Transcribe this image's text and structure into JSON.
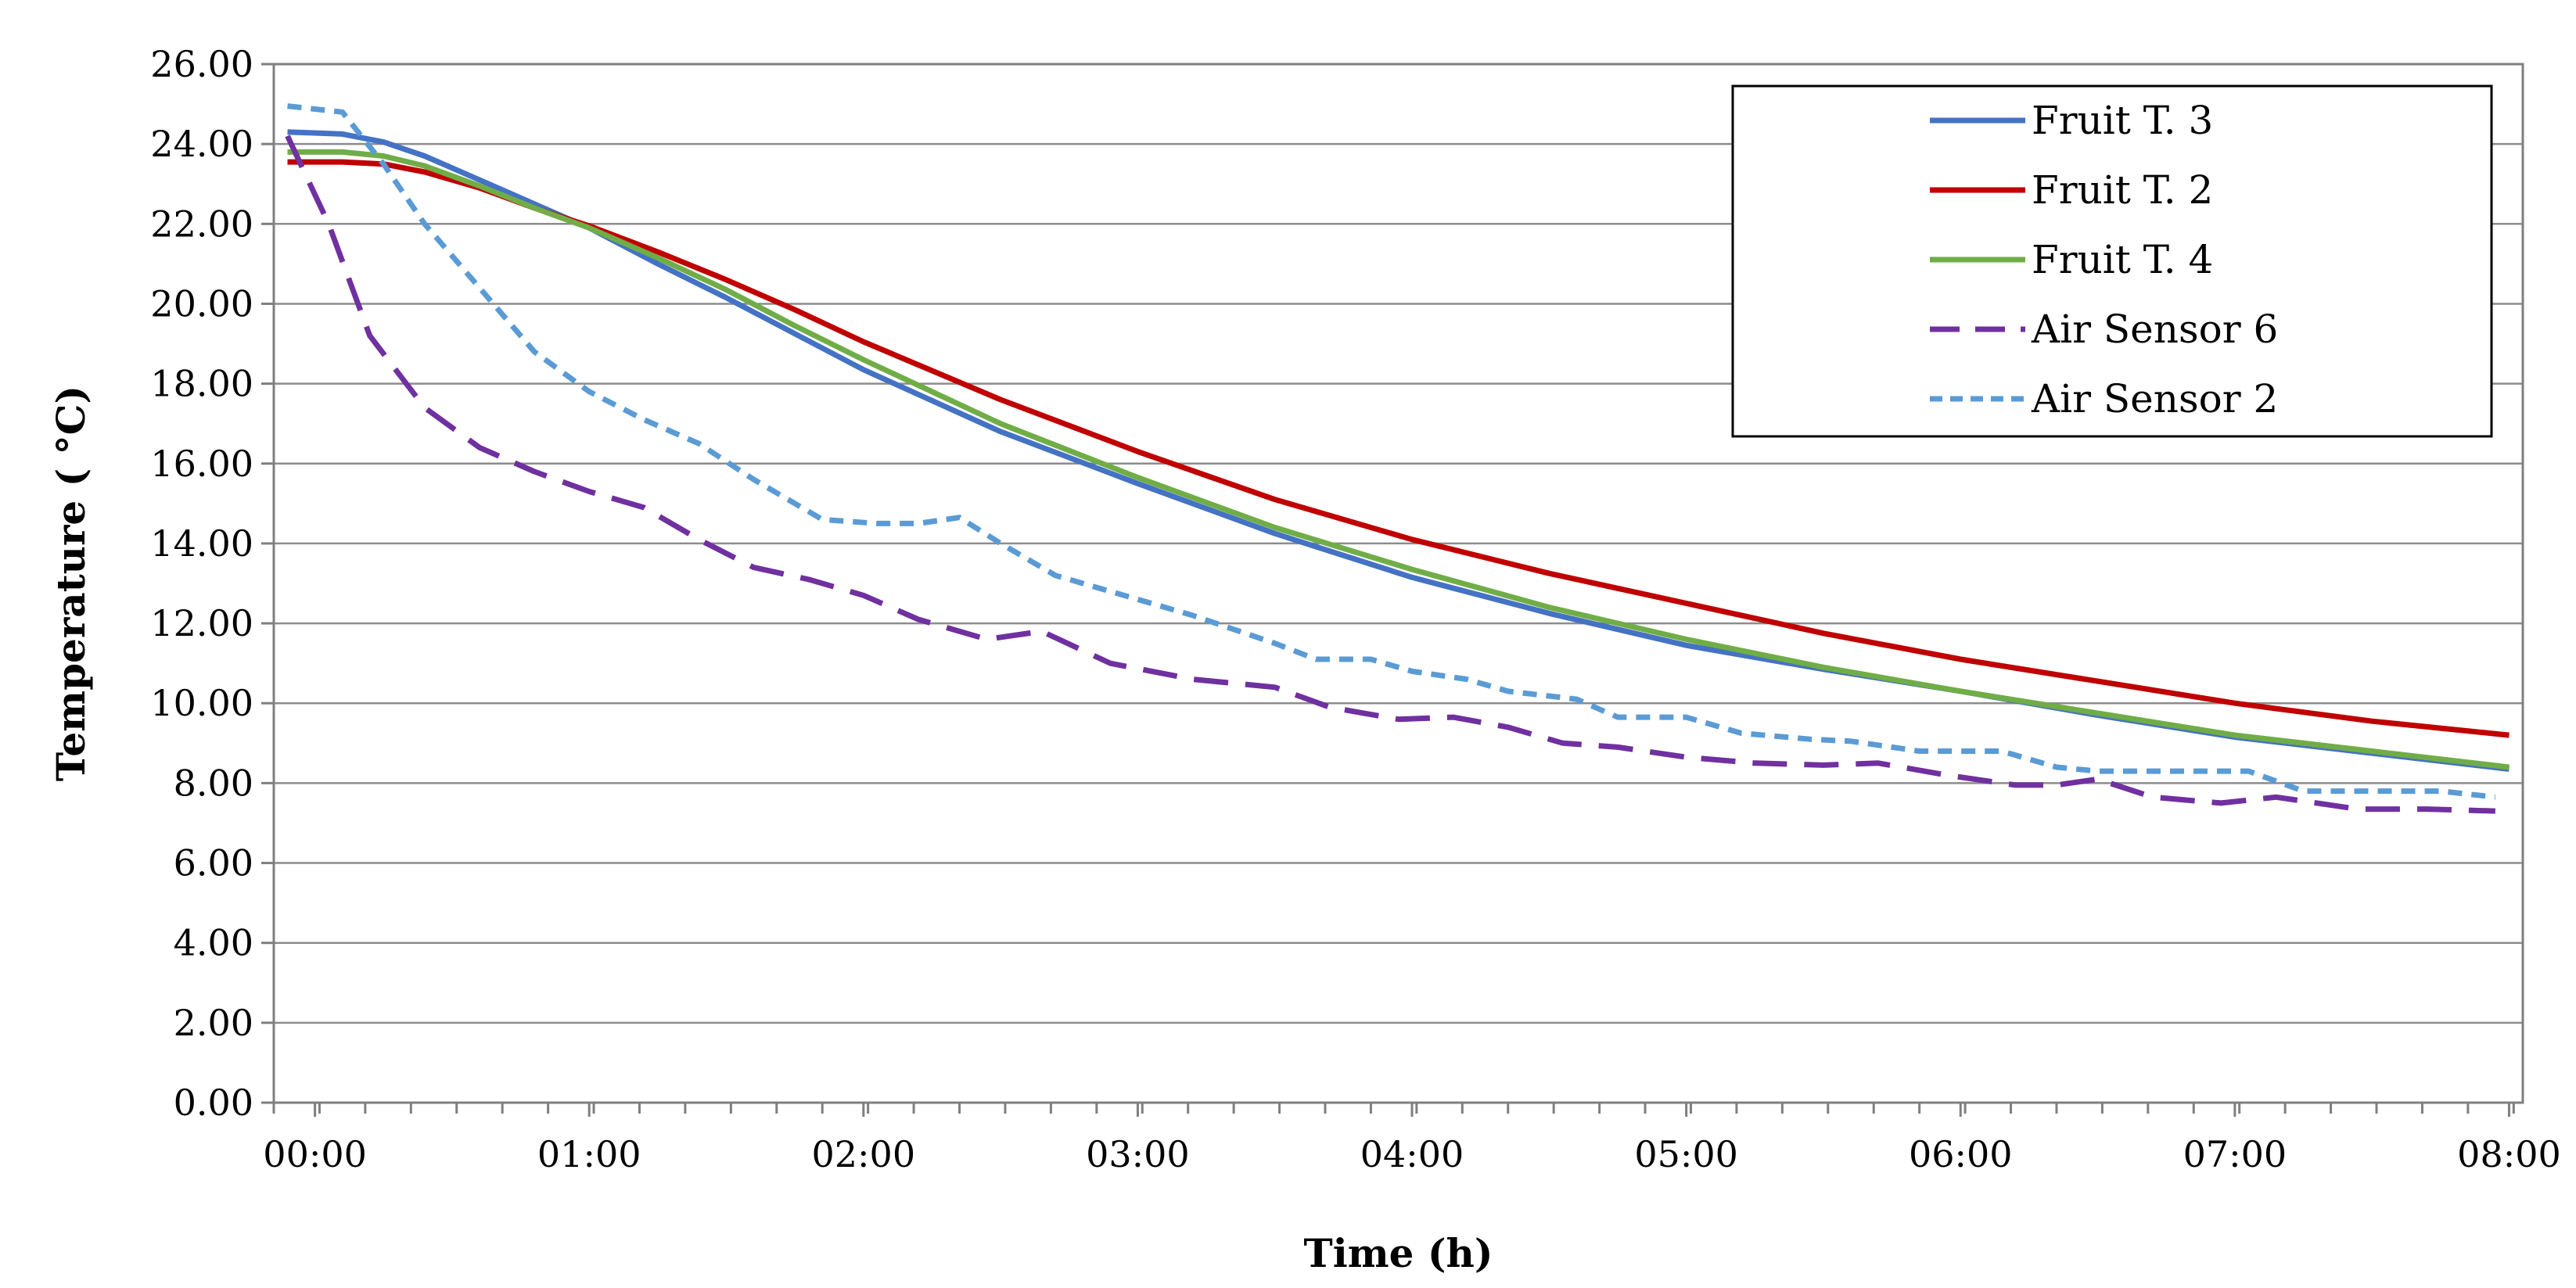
{
  "chart_data": {
    "type": "line",
    "title": "",
    "xlabel": "Time  (h)",
    "ylabel": "Temperature ( °C)",
    "xlim": [
      -0.15,
      8.05
    ],
    "ylim": [
      0,
      26
    ],
    "grid": true,
    "legend_position": "top-right",
    "x_ticks": [
      0,
      1,
      2,
      3,
      4,
      5,
      6,
      7,
      8
    ],
    "x_tick_labels": [
      "00:00",
      "01:00",
      "02:00",
      "03:00",
      "04:00",
      "05:00",
      "06:00",
      "07:00",
      "08:00"
    ],
    "y_ticks": [
      0,
      2,
      4,
      6,
      8,
      10,
      12,
      14,
      16,
      18,
      20,
      22,
      24,
      26
    ],
    "y_tick_labels": [
      "0.00",
      "2.00",
      "4.00",
      "6.00",
      "8.00",
      "10.00",
      "12.00",
      "14.00",
      "16.00",
      "18.00",
      "20.00",
      "22.00",
      "24.00",
      "26.00"
    ],
    "series": [
      {
        "name": "Fruit T. 3",
        "color": "#4472C4",
        "dash": "solid",
        "x": [
          -0.1,
          0.1,
          0.25,
          0.4,
          0.6,
          0.8,
          1.0,
          1.25,
          1.5,
          1.75,
          2.0,
          2.5,
          3.0,
          3.5,
          4.0,
          4.5,
          5.0,
          5.5,
          6.0,
          6.5,
          7.0,
          7.5,
          8.0
        ],
        "y": [
          24.3,
          24.25,
          24.05,
          23.7,
          23.1,
          22.5,
          21.9,
          21.0,
          20.15,
          19.25,
          18.35,
          16.8,
          15.5,
          14.25,
          13.15,
          12.25,
          11.45,
          10.85,
          10.3,
          9.7,
          9.15,
          8.75,
          8.35
        ]
      },
      {
        "name": "Fruit T. 2",
        "color": "#C00000",
        "dash": "solid",
        "x": [
          -0.1,
          0.1,
          0.25,
          0.4,
          0.6,
          0.8,
          1.0,
          1.25,
          1.5,
          1.75,
          2.0,
          2.5,
          3.0,
          3.5,
          4.0,
          4.5,
          5.0,
          5.5,
          6.0,
          6.5,
          7.0,
          7.5,
          8.0
        ],
        "y": [
          23.55,
          23.55,
          23.5,
          23.3,
          22.9,
          22.4,
          21.95,
          21.3,
          20.6,
          19.85,
          19.05,
          17.6,
          16.3,
          15.1,
          14.1,
          13.25,
          12.5,
          11.75,
          11.1,
          10.55,
          10.0,
          9.55,
          9.2
        ]
      },
      {
        "name": "Fruit T. 4",
        "color": "#70AD47",
        "dash": "solid",
        "x": [
          -0.1,
          0.1,
          0.25,
          0.4,
          0.6,
          0.8,
          1.0,
          1.25,
          1.5,
          1.75,
          2.0,
          2.5,
          3.0,
          3.5,
          4.0,
          4.5,
          5.0,
          5.5,
          6.0,
          6.5,
          7.0,
          7.5,
          8.0
        ],
        "y": [
          23.8,
          23.8,
          23.7,
          23.45,
          22.95,
          22.4,
          21.9,
          21.15,
          20.35,
          19.45,
          18.6,
          17.0,
          15.65,
          14.4,
          13.35,
          12.4,
          11.6,
          10.9,
          10.3,
          9.75,
          9.2,
          8.8,
          8.4
        ]
      },
      {
        "name": "Air Sensor 6",
        "color": "#7030A0",
        "dash": "long-dash",
        "x": [
          -0.1,
          0.05,
          0.2,
          0.4,
          0.6,
          0.8,
          1.0,
          1.2,
          1.4,
          1.6,
          1.8,
          2.0,
          2.2,
          2.45,
          2.65,
          2.9,
          3.2,
          3.5,
          3.7,
          3.95,
          4.15,
          4.35,
          4.55,
          4.75,
          5.0,
          5.25,
          5.5,
          5.7,
          5.95,
          6.2,
          6.35,
          6.5,
          6.7,
          6.95,
          7.15,
          7.45,
          7.7,
          7.95
        ],
        "y": [
          24.2,
          22.0,
          19.2,
          17.4,
          16.4,
          15.8,
          15.3,
          14.9,
          14.1,
          13.4,
          13.1,
          12.7,
          12.1,
          11.6,
          11.8,
          11.0,
          10.6,
          10.4,
          9.9,
          9.6,
          9.65,
          9.4,
          9.0,
          8.9,
          8.65,
          8.5,
          8.45,
          8.5,
          8.2,
          7.95,
          7.95,
          8.1,
          7.65,
          7.5,
          7.65,
          7.35,
          7.35,
          7.3
        ]
      },
      {
        "name": "Air Sensor 2",
        "color": "#5B9BD5",
        "dash": "short-dash",
        "x": [
          -0.1,
          0.1,
          0.25,
          0.4,
          0.6,
          0.8,
          1.0,
          1.2,
          1.4,
          1.6,
          1.85,
          2.05,
          2.2,
          2.35,
          2.5,
          2.7,
          2.95,
          3.2,
          3.5,
          3.65,
          3.85,
          4.0,
          4.2,
          4.35,
          4.6,
          4.75,
          5.0,
          5.2,
          5.45,
          5.6,
          5.85,
          6.15,
          6.35,
          6.5,
          6.75,
          7.05,
          7.25,
          7.5,
          7.75,
          7.95
        ],
        "y": [
          24.95,
          24.8,
          23.5,
          22.0,
          20.4,
          18.8,
          17.8,
          17.1,
          16.5,
          15.6,
          14.6,
          14.5,
          14.5,
          14.65,
          14.0,
          13.2,
          12.7,
          12.2,
          11.5,
          11.1,
          11.1,
          10.8,
          10.6,
          10.3,
          10.1,
          9.65,
          9.65,
          9.25,
          9.1,
          9.05,
          8.8,
          8.8,
          8.4,
          8.3,
          8.3,
          8.3,
          7.8,
          7.8,
          7.8,
          7.65
        ]
      }
    ]
  }
}
